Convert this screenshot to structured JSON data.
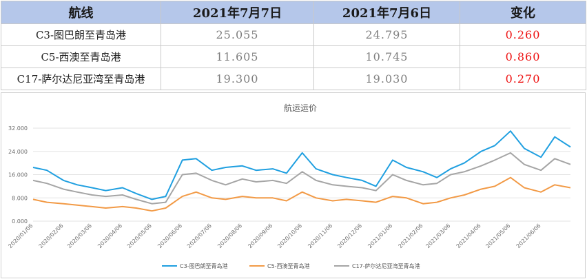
{
  "table": {
    "headers": [
      "航线",
      "2021年7月7日",
      "2021年7月6日",
      "变化"
    ],
    "rows": [
      {
        "route": "C3-图巴朗至青岛港",
        "d1": "25.055",
        "d2": "24.795",
        "change": "0.260"
      },
      {
        "route": "C5-西澳至青岛港",
        "d1": "11.605",
        "d2": "10.745",
        "change": "0.860"
      },
      {
        "route": "C17-萨尔达尼亚湾至青岛港",
        "d1": "19.300",
        "d2": "19.030",
        "change": "0.270"
      }
    ]
  },
  "colors": {
    "c3": "#1f9fe0",
    "c5": "#f29a46",
    "c17": "#a5a5a5",
    "header_bg": "#b5c7ea",
    "change": "#ee1111"
  },
  "chart_data": {
    "type": "line",
    "title": "航运运价",
    "ylim": [
      0,
      32
    ],
    "yticks": [
      "0.000",
      "8.000",
      "16.000",
      "24.000",
      "32.000"
    ],
    "xticks": [
      "2020/01/06",
      "2020/02/06",
      "2020/03/06",
      "2020/04/06",
      "2020/05/06",
      "2020/06/06",
      "2020/07/06",
      "2020/08/06",
      "2020/09/06",
      "2020/10/06",
      "2020/11/06",
      "2020/12/06",
      "2021/01/06",
      "2021/02/06",
      "2021/03/06",
      "2021/04/06",
      "2021/05/06",
      "2021/06/06"
    ],
    "x": [
      "2020/01/06",
      "2020/01/20",
      "2020/02/06",
      "2020/02/20",
      "2020/03/06",
      "2020/03/20",
      "2020/04/06",
      "2020/04/20",
      "2020/05/06",
      "2020/05/20",
      "2020/06/06",
      "2020/06/20",
      "2020/07/06",
      "2020/07/20",
      "2020/08/06",
      "2020/08/20",
      "2020/09/06",
      "2020/09/20",
      "2020/10/06",
      "2020/10/20",
      "2020/11/06",
      "2020/11/20",
      "2020/12/06",
      "2020/12/20",
      "2021/01/06",
      "2021/01/20",
      "2021/02/06",
      "2021/02/20",
      "2021/03/06",
      "2021/03/20",
      "2021/04/06",
      "2021/04/20",
      "2021/05/06",
      "2021/05/20",
      "2021/06/06",
      "2021/06/20",
      "2021/07/06"
    ],
    "series": [
      {
        "name": "C3-图巴朗至青岛港",
        "color": "#1f9fe0",
        "values": [
          18.5,
          17.5,
          14.0,
          12.5,
          11.5,
          10.5,
          11.5,
          9.5,
          7.5,
          8.5,
          21.0,
          21.5,
          17.5,
          18.5,
          19.0,
          17.5,
          18.0,
          16.5,
          23.5,
          18.0,
          16.0,
          15.0,
          14.0,
          12.0,
          21.0,
          18.5,
          17.0,
          15.0,
          18.0,
          20.0,
          24.0,
          26.0,
          31.0,
          25.0,
          22.0,
          29.0,
          25.5
        ]
      },
      {
        "name": "C5-西澳至青岛港",
        "color": "#f29a46",
        "values": [
          7.5,
          6.5,
          6.0,
          5.5,
          5.0,
          4.5,
          5.0,
          4.5,
          3.5,
          4.5,
          8.5,
          10.0,
          8.0,
          7.5,
          8.5,
          8.0,
          8.0,
          7.0,
          10.0,
          8.0,
          7.0,
          7.5,
          7.0,
          6.5,
          8.5,
          8.0,
          6.0,
          6.5,
          8.0,
          9.0,
          11.0,
          12.0,
          15.0,
          11.5,
          10.0,
          12.5,
          11.5
        ]
      },
      {
        "name": "C17-萨尔达尼亚湾至青岛港",
        "color": "#a5a5a5",
        "values": [
          14.0,
          13.0,
          11.0,
          10.0,
          9.0,
          8.5,
          9.0,
          7.5,
          6.0,
          6.5,
          16.0,
          16.5,
          14.0,
          12.5,
          14.5,
          13.5,
          14.0,
          13.0,
          17.0,
          14.0,
          12.5,
          12.0,
          11.5,
          10.5,
          16.0,
          14.0,
          12.5,
          13.0,
          16.0,
          17.0,
          19.0,
          21.0,
          23.5,
          19.5,
          17.5,
          21.5,
          19.5
        ]
      }
    ],
    "legend": "bottom"
  }
}
